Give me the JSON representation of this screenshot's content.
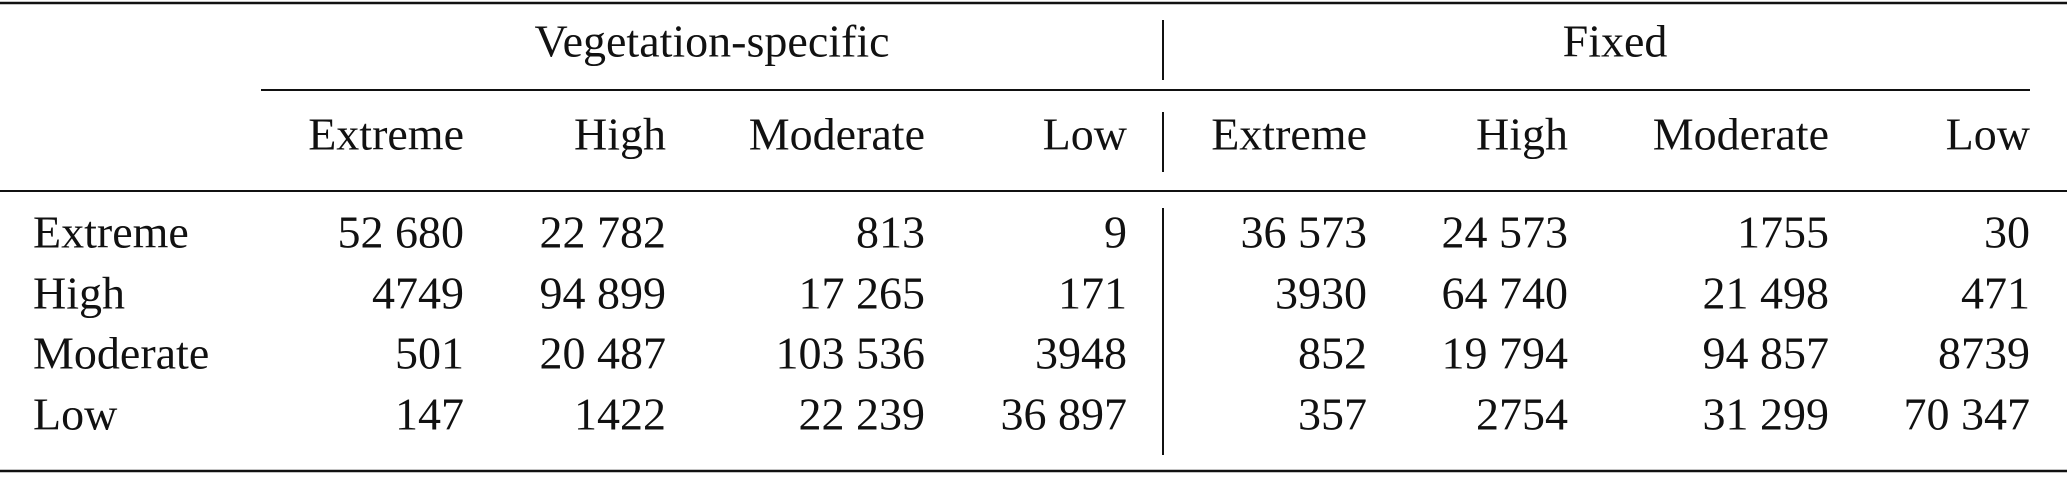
{
  "header": {
    "groups": [
      "Vegetation-specific",
      "Fixed"
    ],
    "columns": [
      "Extreme",
      "High",
      "Moderate",
      "Low",
      "Extreme",
      "High",
      "Moderate",
      "Low"
    ]
  },
  "table": {
    "rows": [
      {
        "label": "Extreme",
        "cells": [
          "52 680",
          "22 782",
          "813",
          "9",
          "36 573",
          "24 573",
          "1755",
          "30"
        ]
      },
      {
        "label": "High",
        "cells": [
          "4749",
          "94 899",
          "17 265",
          "171",
          "3930",
          "64 740",
          "21 498",
          "471"
        ]
      },
      {
        "label": "Moderate",
        "cells": [
          "501",
          "20 487",
          "103 536",
          "3948",
          "852",
          "19 794",
          "94 857",
          "8739"
        ]
      },
      {
        "label": "Low",
        "cells": [
          "147",
          "1422",
          "22 239",
          "36 897",
          "357",
          "2754",
          "31 299",
          "70 347"
        ]
      }
    ]
  }
}
